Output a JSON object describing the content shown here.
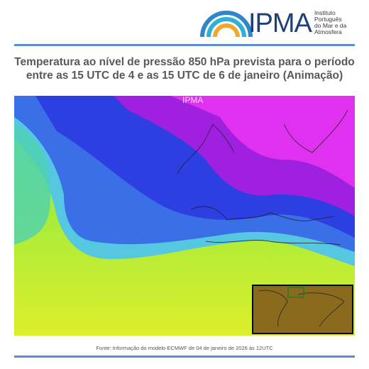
{
  "header": {
    "logo_text": "IPMA",
    "institute": [
      "Instituto",
      "Português",
      "do Mar e da",
      "Atmosfera"
    ]
  },
  "title": [
    "Temperatura ao nível de pressão 850 hPa prevista para o período",
    "entre as 15 UTC de 4 e as 15 UTC de 6 de janeiro (Animação)"
  ],
  "map": {
    "watermark": "IPMA"
  },
  "footer": {
    "source": "Fonte: Informação do modelo ECMWF de 04 de janeiro de 2026 às 12UTC"
  }
}
